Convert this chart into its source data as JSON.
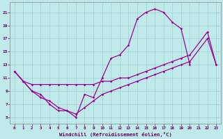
{
  "xlabel": "Windchill (Refroidissement éolien,°C)",
  "bg_color": "#c0eaea",
  "grid_color": "#a0d0d0",
  "line_color": "#990099",
  "xlim_min": -0.5,
  "xlim_max": 23.5,
  "ylim_min": 4.0,
  "ylim_max": 22.5,
  "xticks": [
    0,
    1,
    2,
    3,
    4,
    5,
    6,
    7,
    8,
    9,
    10,
    11,
    12,
    13,
    14,
    15,
    16,
    17,
    18,
    19,
    20,
    21,
    22,
    23
  ],
  "yticks": [
    5,
    7,
    9,
    11,
    13,
    15,
    17,
    19,
    21
  ],
  "line1_x": [
    0,
    1,
    2,
    3,
    4,
    5,
    6,
    7,
    8,
    9,
    10,
    11,
    12,
    13,
    14,
    15,
    16,
    17,
    18,
    19,
    20
  ],
  "line1_y": [
    12,
    10.5,
    9.0,
    8.0,
    7.5,
    6.5,
    6.0,
    5.0,
    8.5,
    8.0,
    11.0,
    14.0,
    14.5,
    16.0,
    20.0,
    21.0,
    21.5,
    21.0,
    19.5,
    18.5,
    13.0
  ],
  "line2_x": [
    0,
    1,
    2,
    3,
    4,
    5,
    6,
    7,
    8,
    9,
    10,
    11,
    12,
    13,
    14,
    15,
    16,
    17,
    18,
    19,
    20,
    22,
    23
  ],
  "line2_y": [
    12,
    10.5,
    10.0,
    10.0,
    10.0,
    10.0,
    10.0,
    10.0,
    10.0,
    10.0,
    10.5,
    10.5,
    11.0,
    11.0,
    11.5,
    12.0,
    12.5,
    13.0,
    13.5,
    14.0,
    14.5,
    18.0,
    13.0
  ],
  "line3_x": [
    0,
    1,
    2,
    3,
    4,
    5,
    6,
    7,
    8,
    9,
    10,
    11,
    12,
    13,
    14,
    15,
    16,
    17,
    18,
    19,
    20,
    22,
    23
  ],
  "line3_y": [
    12,
    10.5,
    9.0,
    8.5,
    7.0,
    6.0,
    6.0,
    5.5,
    6.5,
    7.5,
    8.5,
    9.0,
    9.5,
    10.0,
    10.5,
    11.0,
    11.5,
    12.0,
    12.5,
    13.0,
    13.5,
    17.0,
    13.0
  ]
}
